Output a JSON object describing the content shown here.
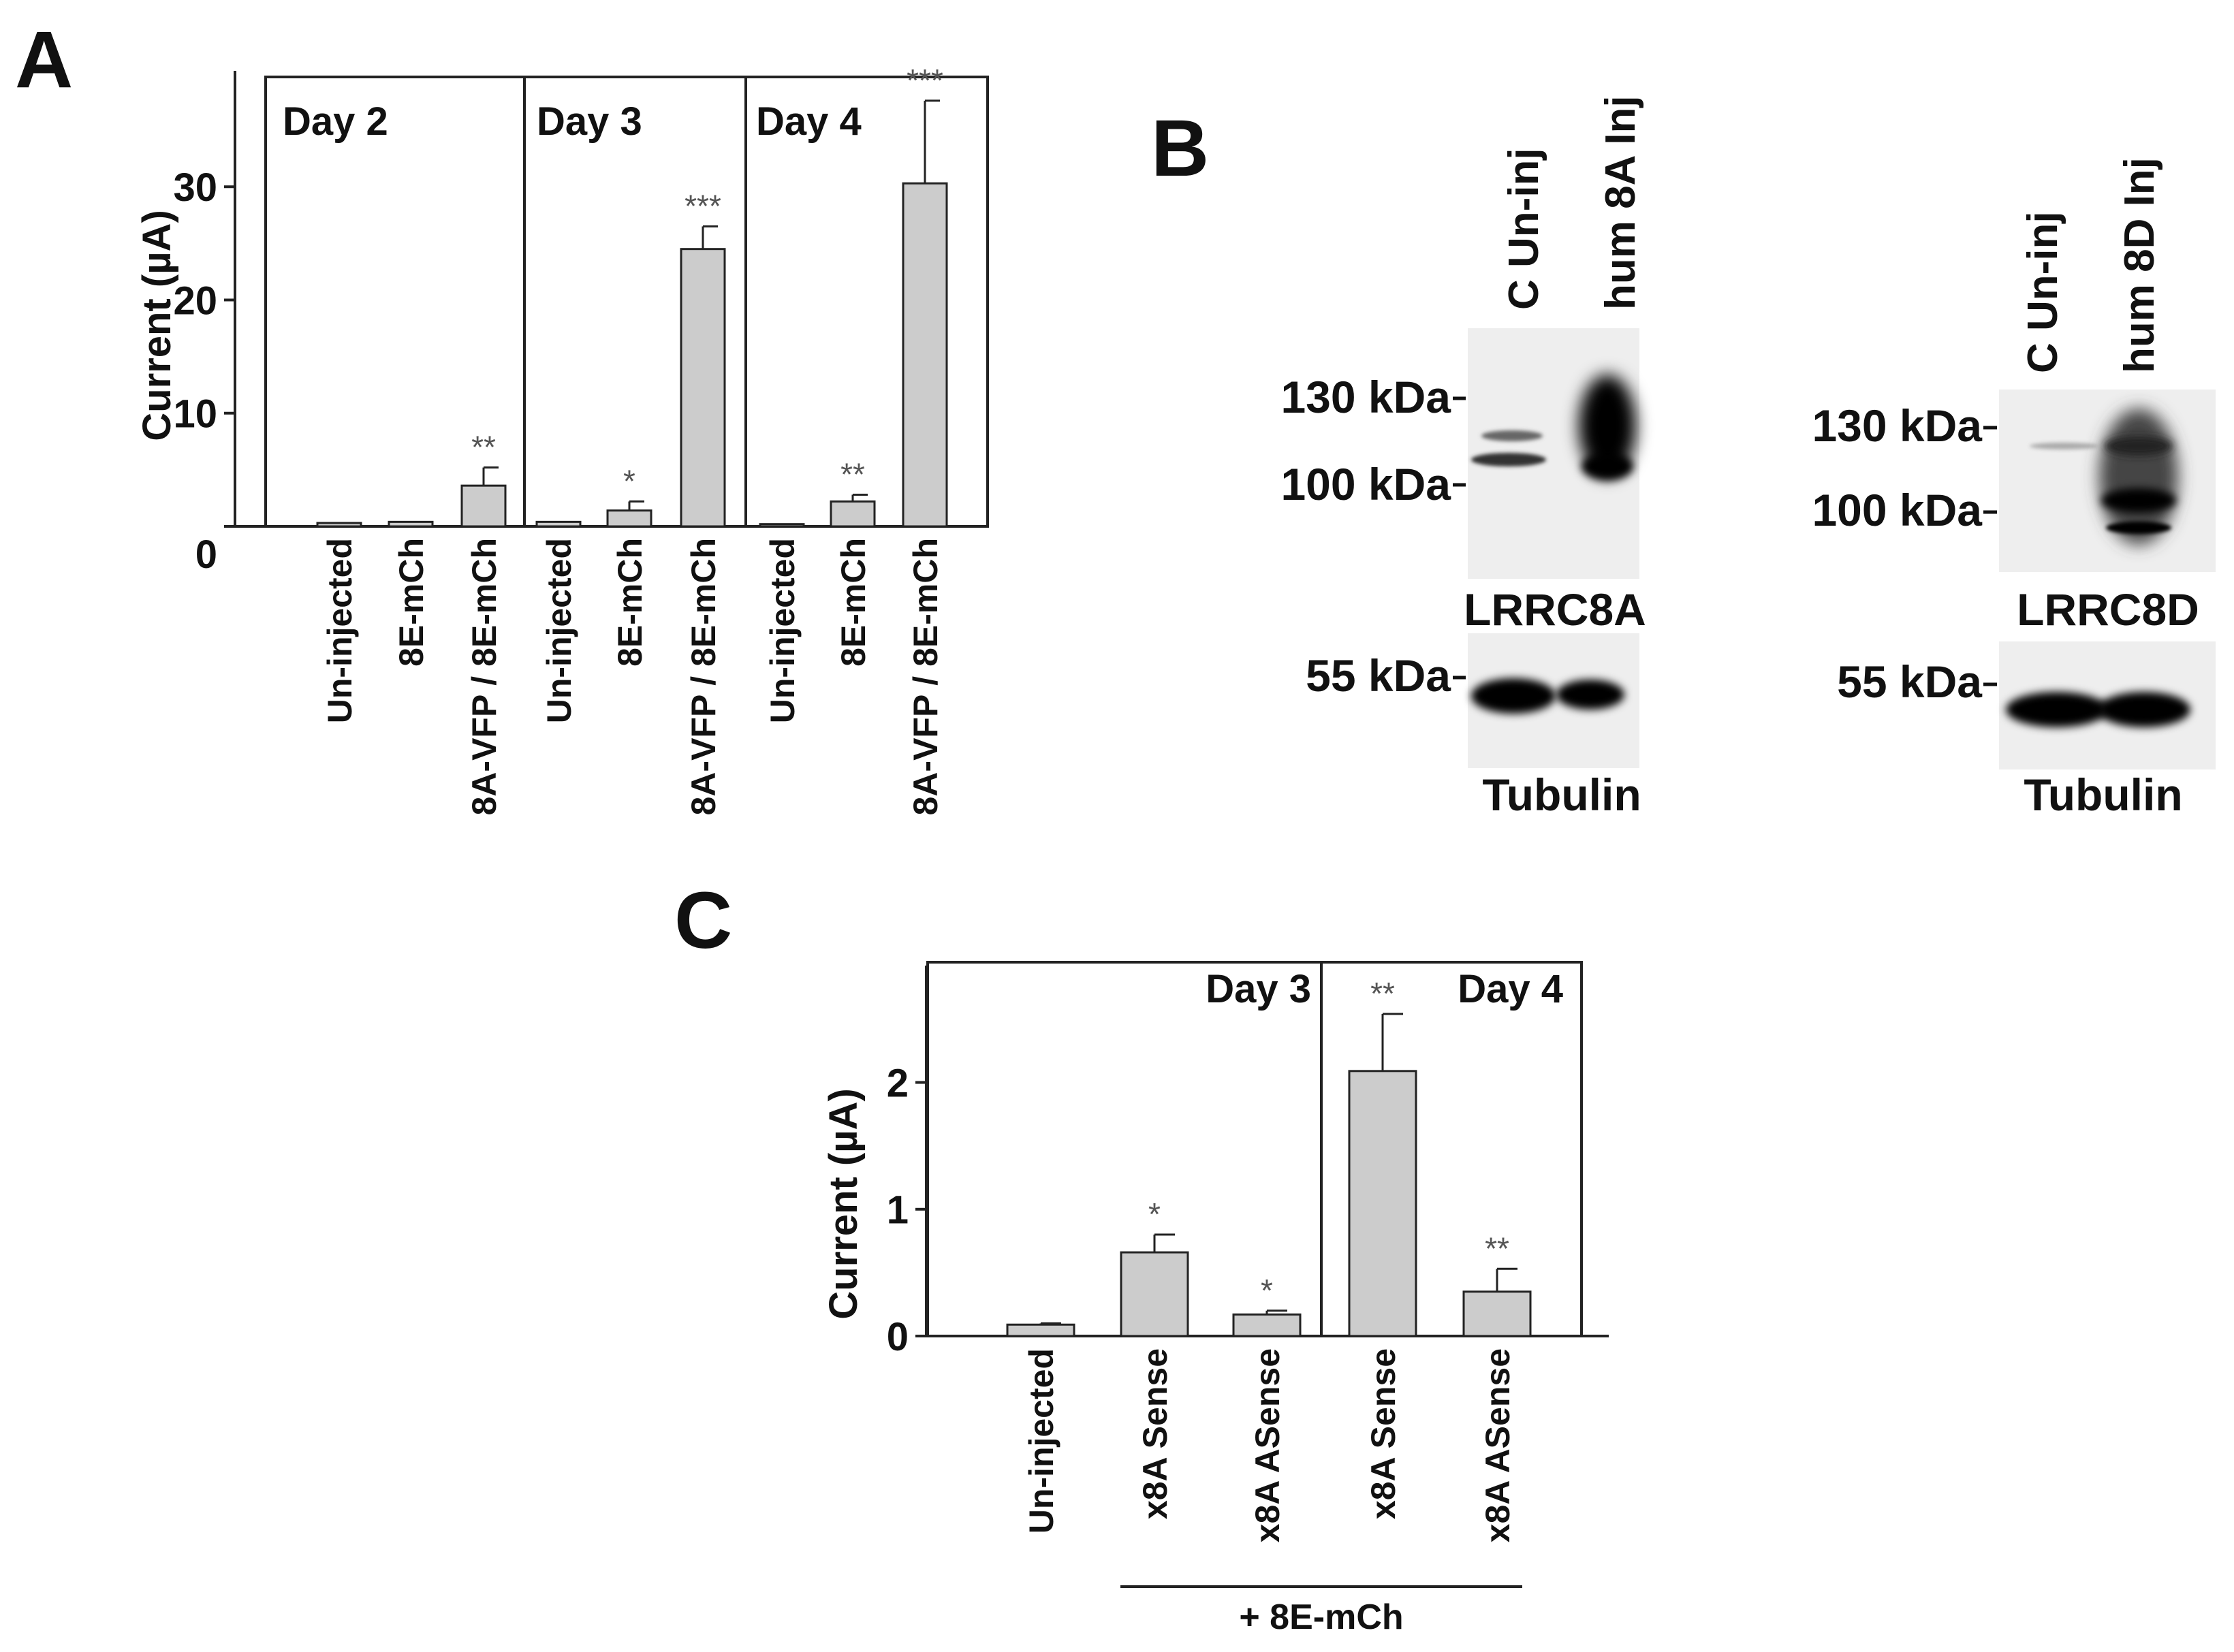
{
  "panels": {
    "A": "A",
    "B": "B",
    "C": "C"
  },
  "chart_data": [
    {
      "id": "A",
      "type": "bar",
      "ylabel": "Current (µA)",
      "ylim": [
        0,
        40
      ],
      "yticks": [
        0,
        10,
        20,
        30
      ],
      "groups": [
        {
          "label": "Day 2",
          "categories": [
            "Un-injected",
            "8E-mCh",
            "8A-VFP / 8E-mCh"
          ],
          "values": [
            0.3,
            0.4,
            3.6
          ],
          "errors": [
            0,
            0,
            1.6
          ],
          "significance": [
            "",
            "",
            "**"
          ]
        },
        {
          "label": "Day 3",
          "categories": [
            "Un-injected",
            "8E-mCh",
            "8A-VFP / 8E-mCh"
          ],
          "values": [
            0.4,
            1.4,
            24.5
          ],
          "errors": [
            0,
            0.8,
            2.0
          ],
          "significance": [
            "",
            "*",
            "***"
          ]
        },
        {
          "label": "Day 4",
          "categories": [
            "Un-injected",
            "8E-mCh",
            "8A-VFP / 8E-mCh"
          ],
          "values": [
            0.2,
            2.2,
            30.3
          ],
          "errors": [
            0,
            0.6,
            7.3
          ],
          "significance": [
            "",
            "**",
            "***"
          ]
        }
      ]
    },
    {
      "id": "C",
      "type": "bar",
      "ylabel": "Current (µA)",
      "ylim": [
        0,
        2.9
      ],
      "yticks": [
        0,
        1,
        2
      ],
      "groups": [
        {
          "label": "Day 3",
          "categories": [
            "Un-injected",
            "x8A Sense",
            "x8A ASense"
          ],
          "values": [
            0.09,
            0.66,
            0.17
          ],
          "errors": [
            0.01,
            0.14,
            0.03
          ],
          "significance": [
            "",
            "*",
            "*"
          ]
        },
        {
          "label": "Day 4",
          "categories": [
            "x8A Sense",
            "x8A ASense"
          ],
          "values": [
            2.09,
            0.35
          ],
          "errors": [
            0.45,
            0.18
          ],
          "significance": [
            "**",
            "**"
          ]
        }
      ],
      "group_annotation": "+ 8E-mCh"
    }
  ],
  "blots": [
    {
      "lanes": [
        "C Un-inj",
        "hum 8A Inj"
      ],
      "markers": [
        "130 kDa",
        "100 kDa",
        "55 kDa"
      ],
      "protein": "LRRC8A",
      "loading_control": "Tubulin"
    },
    {
      "lanes": [
        "C Un-inj",
        "hum 8D Inj"
      ],
      "markers": [
        "130 kDa",
        "100 kDa",
        "55 kDa"
      ],
      "protein": "LRRC8D",
      "loading_control": "Tubulin"
    }
  ]
}
